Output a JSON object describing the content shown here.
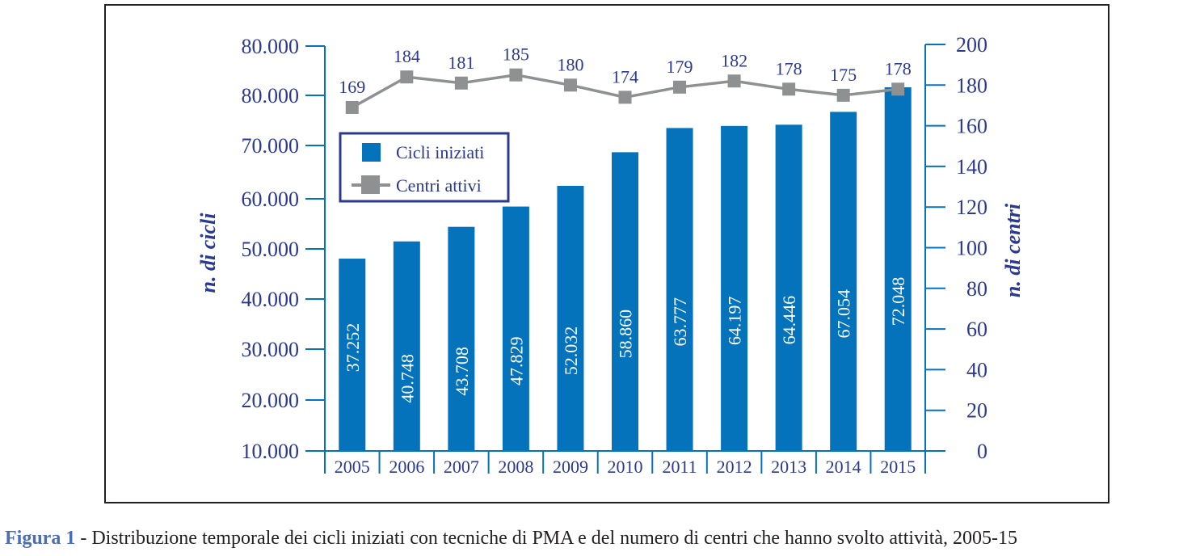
{
  "chart_data": {
    "type": "bar+line",
    "categories": [
      "2005",
      "2006",
      "2007",
      "2008",
      "2009",
      "2010",
      "2011",
      "2012",
      "2013",
      "2014",
      "2015"
    ],
    "series": [
      {
        "name": "Cicli iniziati",
        "type": "bar",
        "axis": "left",
        "values": [
          37252,
          40748,
          43708,
          47829,
          52032,
          58860,
          63777,
          64197,
          64446,
          67054,
          72048
        ],
        "labels": [
          "37.252",
          "40.748",
          "43.708",
          "47.829",
          "52.032",
          "58.860",
          "63.777",
          "64.197",
          "64.446",
          "67.054",
          "72.048"
        ],
        "color": "#0572bc"
      },
      {
        "name": "Centri attivi",
        "type": "line",
        "axis": "right",
        "values": [
          169,
          184,
          181,
          185,
          180,
          174,
          179,
          182,
          178,
          175,
          178
        ],
        "labels": [
          "169",
          "184",
          "181",
          "185",
          "180",
          "174",
          "179",
          "182",
          "178",
          "175",
          "178"
        ],
        "color": "#8e9091"
      }
    ],
    "left_axis": {
      "label": "n. di cicli",
      "tick_labels": [
        "80.000",
        "80.000",
        "70.000",
        "60.000",
        "50.000",
        "40.000",
        "30.000",
        "20.000",
        "10.000"
      ]
    },
    "right_axis": {
      "label": "n. di centri",
      "ylim": [
        0,
        200
      ],
      "tick_values": [
        200,
        180,
        160,
        140,
        120,
        100,
        80,
        60,
        40,
        20,
        0
      ],
      "tick_labels": [
        "200",
        "180",
        "160",
        "140",
        "120",
        "100",
        "80",
        "60",
        "40",
        "20",
        "0"
      ]
    },
    "legend": {
      "position": "top-left",
      "entries": [
        "Cicli iniziati",
        "Centri attivi"
      ]
    },
    "grid": false,
    "axis_color": "#0572bc",
    "text_color": "#2b3990"
  },
  "caption": {
    "figure_label": "Figura 1",
    "text": " - Distribuzione temporale dei cicli iniziati con tecniche di PMA e del numero di centri che hanno svolto attività, 2005-15"
  }
}
